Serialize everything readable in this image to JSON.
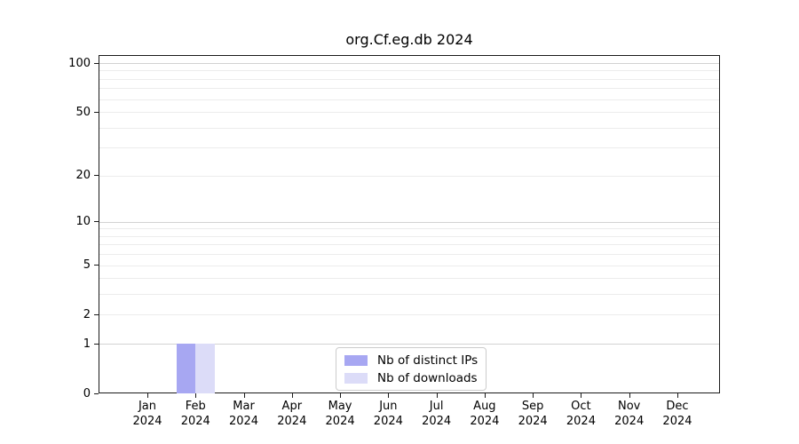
{
  "chart_data": {
    "type": "bar",
    "title": "org.Cf.eg.db 2024",
    "xlabel": "",
    "ylabel": "",
    "yscale": "log1p",
    "ylim": [
      0,
      112
    ],
    "grid": "horizontal",
    "legend_position": "inside lower center",
    "categories": [
      "Jan",
      "Feb",
      "Mar",
      "Apr",
      "May",
      "Jun",
      "Jul",
      "Aug",
      "Sep",
      "Oct",
      "Nov",
      "Dec"
    ],
    "xtick_year": "2024",
    "yticks": [
      100,
      50,
      20,
      10,
      5,
      2,
      1,
      0
    ],
    "gridlines": {
      "major": [
        1,
        10,
        100
      ],
      "minor": [
        2,
        3,
        4,
        5,
        6,
        7,
        8,
        9,
        20,
        30,
        40,
        50,
        60,
        70,
        80,
        90
      ]
    },
    "series": [
      {
        "name": "Nb of distinct IPs",
        "color": "#a7a7f2",
        "values": [
          0,
          1,
          0,
          0,
          0,
          0,
          0,
          0,
          0,
          0,
          0,
          0
        ]
      },
      {
        "name": "Nb of downloads",
        "color": "#dcdcf8",
        "values": [
          0,
          1,
          0,
          0,
          0,
          0,
          0,
          0,
          0,
          0,
          0,
          0
        ]
      }
    ],
    "colors": {
      "grid_major": "#d2d2d2",
      "grid_minor": "#ececec",
      "axis": "#1a1a1a",
      "legend_border": "#cccccc",
      "text": "#000000"
    }
  }
}
